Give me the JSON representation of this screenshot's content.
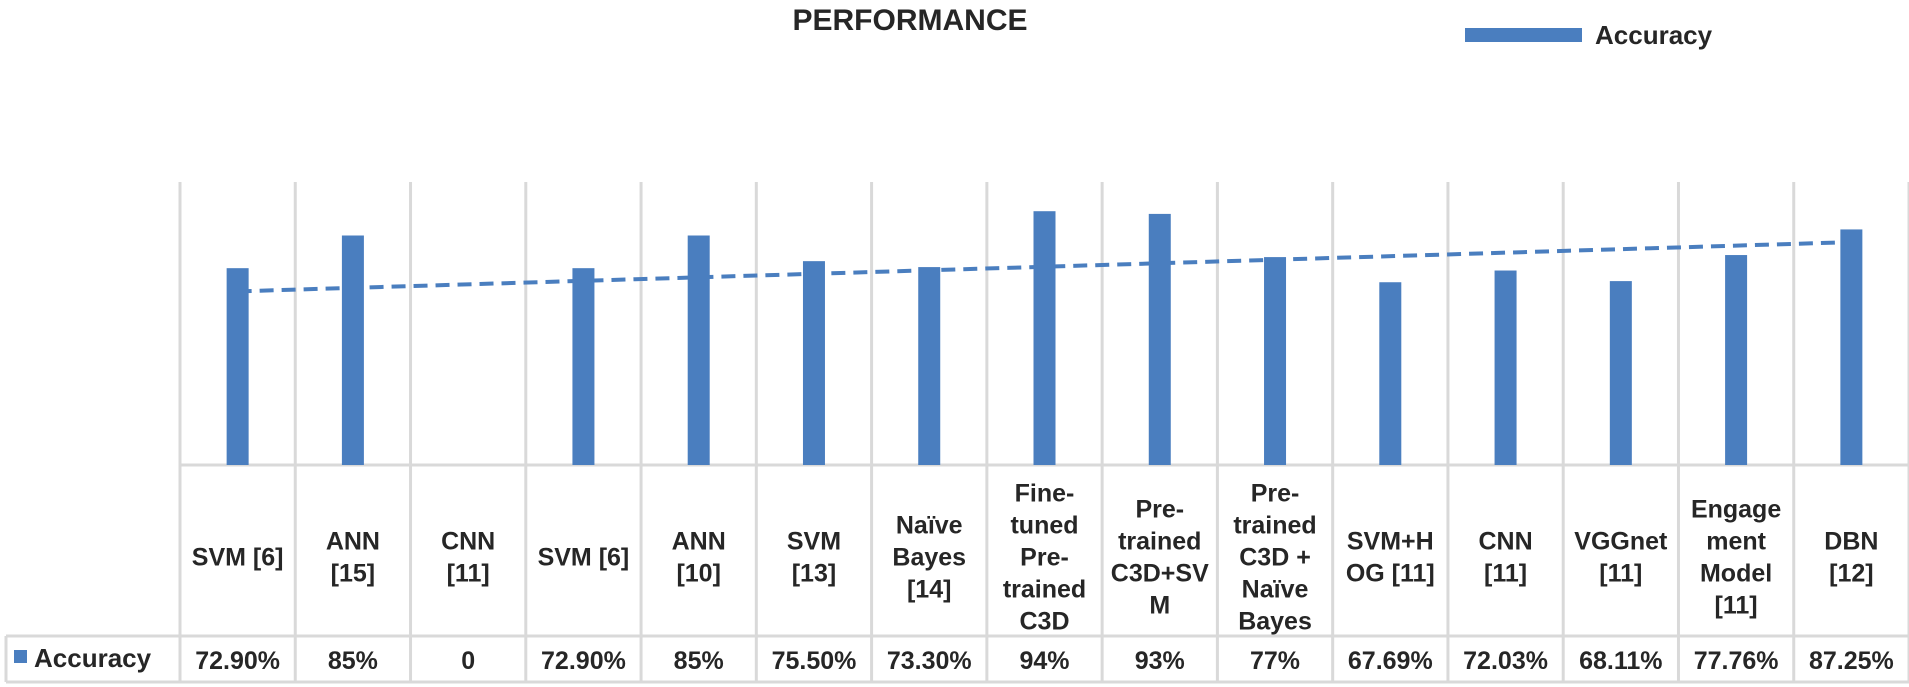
{
  "chart_data": {
    "type": "bar",
    "title": "PERFORMANCE",
    "xlabel": "",
    "ylabel": "",
    "ylim": [
      0,
      100
    ],
    "grid": false,
    "legend_position": "top-right",
    "trendline": "linear",
    "data_table": true,
    "categories": [
      "SVM [6]",
      "ANN [15]",
      "CNN [11]",
      "SVM [6]",
      "ANN [10]",
      "SVM [13]",
      "Naïve Bayes [14]",
      "Fine-tuned Pre-trained C3D",
      "Pre-trained C3D+SVM",
      "Pre-trained C3D + Naïve Bayes",
      "SVM+HOG [11]",
      "CNN [11]",
      "VGGnet [11]",
      "Engagement Model [11]",
      "DBN [12]"
    ],
    "category_lines": [
      [
        "SVM [6]"
      ],
      [
        "ANN",
        "[15]"
      ],
      [
        "CNN",
        "[11]"
      ],
      [
        "SVM [6]"
      ],
      [
        "ANN",
        "[10]"
      ],
      [
        "SVM",
        "[13]"
      ],
      [
        "Naïve",
        "Bayes",
        "[14]"
      ],
      [
        "Fine-",
        "tuned",
        "Pre-",
        "trained",
        "C3D"
      ],
      [
        "Pre-",
        "trained",
        "C3D+SV",
        "M"
      ],
      [
        "Pre-",
        "trained",
        "C3D +",
        "Naïve",
        "Bayes"
      ],
      [
        "SVM+H",
        "OG [11]"
      ],
      [
        "CNN",
        "[11]"
      ],
      [
        "VGGnet",
        "[11]"
      ],
      [
        "Engage",
        "ment",
        "Model",
        "[11]"
      ],
      [
        "DBN",
        "[12]"
      ]
    ],
    "series": [
      {
        "name": "Accuracy",
        "color": "#4a7ebf",
        "values": [
          72.9,
          85,
          0,
          72.9,
          85,
          75.5,
          73.3,
          94,
          93,
          77,
          67.69,
          72.03,
          68.11,
          77.76,
          87.25
        ],
        "labels": [
          "72.90%",
          "85%",
          "0",
          "72.90%",
          "85%",
          "75.50%",
          "73.30%",
          "94%",
          "93%",
          "77%",
          "67.69%",
          "72.03%",
          "68.11%",
          "77.76%",
          "87.25%"
        ]
      }
    ],
    "colors": {
      "bar": "#4a7ebf",
      "trend": "#4a7ebf",
      "grid": "#d9d9d9",
      "text": "#262626"
    }
  }
}
